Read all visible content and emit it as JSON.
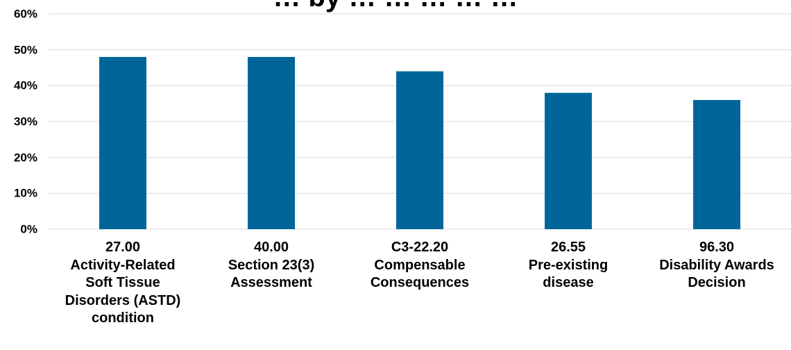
{
  "chart_data": {
    "type": "bar",
    "title": "… by … … … … …",
    "categories": [
      [
        "27.00",
        "Activity-Related",
        "Soft Tissue",
        "Disorders (ASTD)",
        "condition"
      ],
      [
        "40.00",
        "Section 23(3)",
        "Assessment"
      ],
      [
        "C3-22.20",
        "Compensable",
        "Consequences"
      ],
      [
        "26.55",
        "Pre-existing",
        "disease"
      ],
      [
        "96.30",
        "Disability Awards",
        "Decision"
      ]
    ],
    "values": [
      48,
      48,
      44,
      38,
      36
    ],
    "value_format": "percent",
    "ylim": [
      0,
      60
    ],
    "yticks": [
      "0%",
      "10%",
      "20%",
      "30%",
      "40%",
      "50%",
      "60%"
    ],
    "grid": true,
    "bar_color": "#006699",
    "grid_color": "#d9d9d9"
  }
}
